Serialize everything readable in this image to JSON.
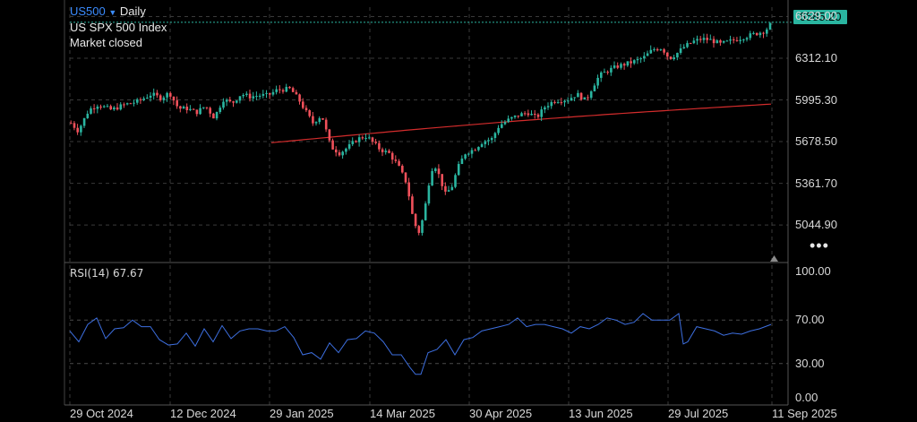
{
  "header": {
    "symbol": "US500",
    "interval": "Daily",
    "instrument": "US SPX 500 Index",
    "status": "Market closed"
  },
  "last_price": "6585.20",
  "rsi": {
    "label": "RSI(14)",
    "value": "67.67"
  },
  "colors": {
    "up": "#2ab5a0",
    "down": "#f0505a",
    "ma": "#d32c2c",
    "rsi": "#3d6fe0",
    "grid": "#3a3a3a"
  },
  "icons": {
    "more": "more-dots-icon",
    "scroll": "scroll-triangle-icon",
    "caret": "chevron-down-icon"
  },
  "chart_data": [
    {
      "type": "candlestick",
      "price_axis_ticks": [
        "6629.00",
        "6312.10",
        "5995.30",
        "5678.50",
        "5361.70",
        "5044.90"
      ],
      "time_axis_ticks": [
        "29 Oct 2024",
        "12 Dec 2024",
        "29 Jan 2025",
        "14 Mar 2025",
        "30 Apr 2025",
        "13 Jun 2025",
        "29 Jul 2025",
        "11 Sep 2025"
      ],
      "ylim": [
        4780,
        6680
      ],
      "last_value": 6585.2,
      "moving_average_endpoints": [
        [
          "Jan 2025",
          5670
        ],
        [
          "Sep 2025",
          5965
        ]
      ],
      "close_path": [
        [
          0,
          5820
        ],
        [
          8,
          5760
        ],
        [
          20,
          5920
        ],
        [
          30,
          5960
        ],
        [
          45,
          5920
        ],
        [
          60,
          5960
        ],
        [
          75,
          5985
        ],
        [
          90,
          6040
        ],
        [
          100,
          6010
        ],
        [
          110,
          6050
        ],
        [
          120,
          5930
        ],
        [
          130,
          5930
        ],
        [
          140,
          5900
        ],
        [
          150,
          5950
        ],
        [
          160,
          5860
        ],
        [
          170,
          6000
        ],
        [
          180,
          5970
        ],
        [
          190,
          6040
        ],
        [
          200,
          6020
        ],
        [
          210,
          6030
        ],
        [
          220,
          6030
        ],
        [
          230,
          6070
        ],
        [
          245,
          6080
        ],
        [
          255,
          5990
        ],
        [
          262,
          5910
        ],
        [
          270,
          5820
        ],
        [
          280,
          5880
        ],
        [
          290,
          5640
        ],
        [
          300,
          5590
        ],
        [
          310,
          5640
        ],
        [
          320,
          5700
        ],
        [
          330,
          5720
        ],
        [
          345,
          5620
        ],
        [
          355,
          5590
        ],
        [
          365,
          5500
        ],
        [
          375,
          5360
        ],
        [
          382,
          5090
        ],
        [
          388,
          4980
        ],
        [
          394,
          5120
        ],
        [
          400,
          5380
        ],
        [
          405,
          5520
        ],
        [
          410,
          5440
        ],
        [
          418,
          5280
        ],
        [
          425,
          5330
        ],
        [
          432,
          5480
        ],
        [
          440,
          5590
        ],
        [
          450,
          5620
        ],
        [
          460,
          5680
        ],
        [
          470,
          5700
        ],
        [
          478,
          5800
        ],
        [
          490,
          5850
        ],
        [
          500,
          5880
        ],
        [
          510,
          5900
        ],
        [
          520,
          5860
        ],
        [
          530,
          5950
        ],
        [
          540,
          5990
        ],
        [
          555,
          6000
        ],
        [
          565,
          6040
        ],
        [
          575,
          5990
        ],
        [
          582,
          6090
        ],
        [
          590,
          6180
        ],
        [
          600,
          6220
        ],
        [
          610,
          6250
        ],
        [
          620,
          6270
        ],
        [
          630,
          6290
        ],
        [
          640,
          6320
        ],
        [
          650,
          6380
        ],
        [
          660,
          6390
        ],
        [
          668,
          6310
        ],
        [
          675,
          6340
        ],
        [
          685,
          6400
        ],
        [
          695,
          6440
        ],
        [
          705,
          6460
        ],
        [
          715,
          6450
        ],
        [
          725,
          6420
        ],
        [
          735,
          6440
        ],
        [
          745,
          6460
        ],
        [
          755,
          6480
        ],
        [
          765,
          6500
        ],
        [
          775,
          6520
        ],
        [
          783,
          6585
        ]
      ]
    },
    {
      "type": "line",
      "name": "RSI(14)",
      "axis_ticks": [
        "100.00",
        "70.00",
        "30.00",
        "0.00"
      ],
      "ylim": [
        0,
        100
      ],
      "levels": [
        70,
        30
      ],
      "x": [
        0,
        10,
        20,
        30,
        40,
        50,
        60,
        70,
        80,
        90,
        100,
        110,
        120,
        130,
        140,
        150,
        160,
        170,
        180,
        190,
        200,
        210,
        220,
        230,
        240,
        250,
        260,
        270,
        280,
        290,
        300,
        310,
        320,
        330,
        340,
        350,
        360,
        370,
        380,
        386,
        392,
        400,
        410,
        420,
        430,
        440,
        450,
        460,
        470,
        480,
        490,
        500,
        510,
        520,
        530,
        540,
        550,
        560,
        570,
        580,
        590,
        600,
        610,
        620,
        630,
        640,
        650,
        660,
        670,
        680,
        685,
        690,
        700,
        710,
        720,
        730,
        740,
        750,
        760,
        770,
        783
      ],
      "values": [
        62,
        48,
        68,
        70,
        55,
        60,
        65,
        68,
        66,
        62,
        54,
        45,
        50,
        56,
        48,
        60,
        52,
        63,
        55,
        58,
        64,
        60,
        62,
        58,
        66,
        52,
        40,
        38,
        36,
        47,
        42,
        50,
        55,
        58,
        60,
        48,
        40,
        36,
        28,
        18,
        22,
        38,
        45,
        50,
        40,
        50,
        56,
        58,
        64,
        62,
        68,
        70,
        66,
        64,
        68,
        62,
        64,
        56,
        66,
        60,
        68,
        70,
        72,
        64,
        70,
        74,
        72,
        68,
        72,
        74,
        50,
        48,
        66,
        60,
        62,
        54,
        60,
        55,
        62,
        60,
        68
      ]
    }
  ]
}
